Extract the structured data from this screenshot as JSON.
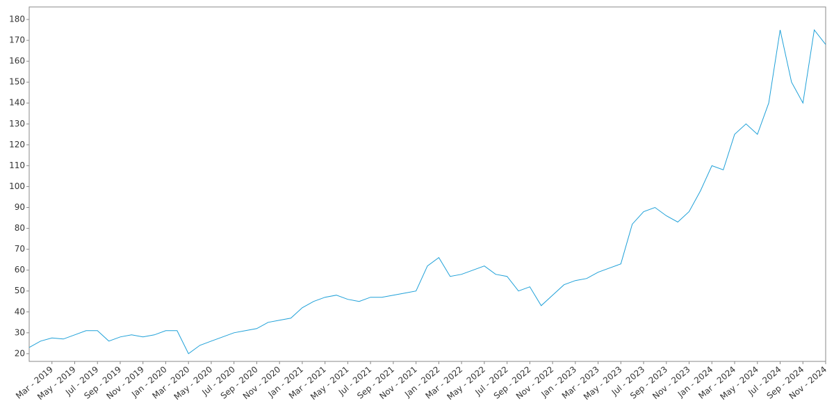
{
  "chart_data": {
    "type": "line",
    "color": "#1ea0d8",
    "x": [
      "2019-01",
      "2019-02",
      "2019-03",
      "2019-04",
      "2019-05",
      "2019-06",
      "2019-07",
      "2019-08",
      "2019-09",
      "2019-10",
      "2019-11",
      "2019-12",
      "2020-01",
      "2020-02",
      "2020-03",
      "2020-04",
      "2020-05",
      "2020-06",
      "2020-07",
      "2020-08",
      "2020-09",
      "2020-10",
      "2020-11",
      "2020-12",
      "2021-01",
      "2021-02",
      "2021-03",
      "2021-04",
      "2021-05",
      "2021-06",
      "2021-07",
      "2021-08",
      "2021-09",
      "2021-10",
      "2021-11",
      "2021-12",
      "2022-01",
      "2022-02",
      "2022-03",
      "2022-04",
      "2022-05",
      "2022-06",
      "2022-07",
      "2022-08",
      "2022-09",
      "2022-10",
      "2022-11",
      "2022-12",
      "2023-01",
      "2023-02",
      "2023-03",
      "2023-04",
      "2023-05",
      "2023-06",
      "2023-07",
      "2023-08",
      "2023-09",
      "2023-10",
      "2023-11",
      "2023-12",
      "2024-01",
      "2024-02",
      "2024-03",
      "2024-04",
      "2024-05",
      "2024-06",
      "2024-07",
      "2024-08",
      "2024-09",
      "2024-10",
      "2024-11"
    ],
    "values": [
      23,
      26,
      27.5,
      27,
      29,
      31,
      31,
      26,
      28,
      29,
      28,
      29,
      31,
      31,
      20,
      24,
      26,
      28,
      30,
      31,
      32,
      35,
      36,
      37,
      42,
      45,
      47,
      48,
      46,
      45,
      47,
      47,
      48,
      49,
      50,
      62,
      66,
      57,
      58,
      60,
      62,
      58,
      57,
      50,
      52,
      43,
      48,
      53,
      55,
      56,
      59,
      61,
      63,
      82,
      88,
      90,
      86,
      83,
      88,
      98,
      110,
      108,
      125,
      130,
      125,
      140,
      175,
      150,
      140,
      175,
      168
    ],
    "xlim": [
      "2019-01",
      "2024-11"
    ],
    "ylim": [
      16.3,
      186
    ],
    "yticks": [
      20,
      30,
      40,
      50,
      60,
      70,
      80,
      90,
      100,
      110,
      120,
      130,
      140,
      150,
      160,
      170,
      180
    ],
    "xticks": [
      {
        "value": "2019-03",
        "label": "Mar - 2019"
      },
      {
        "value": "2019-05",
        "label": "May - 2019"
      },
      {
        "value": "2019-07",
        "label": "Jul - 2019"
      },
      {
        "value": "2019-09",
        "label": "Sep - 2019"
      },
      {
        "value": "2019-11",
        "label": "Nov - 2019"
      },
      {
        "value": "2020-01",
        "label": "Jan - 2020"
      },
      {
        "value": "2020-03",
        "label": "Mar - 2020"
      },
      {
        "value": "2020-05",
        "label": "May - 2020"
      },
      {
        "value": "2020-07",
        "label": "Jul - 2020"
      },
      {
        "value": "2020-09",
        "label": "Sep - 2020"
      },
      {
        "value": "2020-11",
        "label": "Nov - 2020"
      },
      {
        "value": "2021-01",
        "label": "Jan - 2021"
      },
      {
        "value": "2021-03",
        "label": "Mar - 2021"
      },
      {
        "value": "2021-05",
        "label": "May - 2021"
      },
      {
        "value": "2021-07",
        "label": "Jul - 2021"
      },
      {
        "value": "2021-09",
        "label": "Sep - 2021"
      },
      {
        "value": "2021-11",
        "label": "Nov - 2021"
      },
      {
        "value": "2022-01",
        "label": "Jan - 2022"
      },
      {
        "value": "2022-03",
        "label": "Mar - 2022"
      },
      {
        "value": "2022-05",
        "label": "May - 2022"
      },
      {
        "value": "2022-07",
        "label": "Jul - 2022"
      },
      {
        "value": "2022-09",
        "label": "Sep - 2022"
      },
      {
        "value": "2022-11",
        "label": "Nov - 2022"
      },
      {
        "value": "2023-01",
        "label": "Jan - 2023"
      },
      {
        "value": "2023-03",
        "label": "Mar - 2023"
      },
      {
        "value": "2023-05",
        "label": "May - 2023"
      },
      {
        "value": "2023-07",
        "label": "Jul - 2023"
      },
      {
        "value": "2023-09",
        "label": "Sep - 2023"
      },
      {
        "value": "2023-11",
        "label": "Nov - 2023"
      },
      {
        "value": "2024-01",
        "label": "Jan - 2024"
      },
      {
        "value": "2024-03",
        "label": "Mar - 2024"
      },
      {
        "value": "2024-05",
        "label": "May - 2024"
      },
      {
        "value": "2024-07",
        "label": "Jul - 2024"
      },
      {
        "value": "2024-09",
        "label": "Sep - 2024"
      },
      {
        "value": "2024-11",
        "label": "Nov - 2024"
      }
    ]
  }
}
